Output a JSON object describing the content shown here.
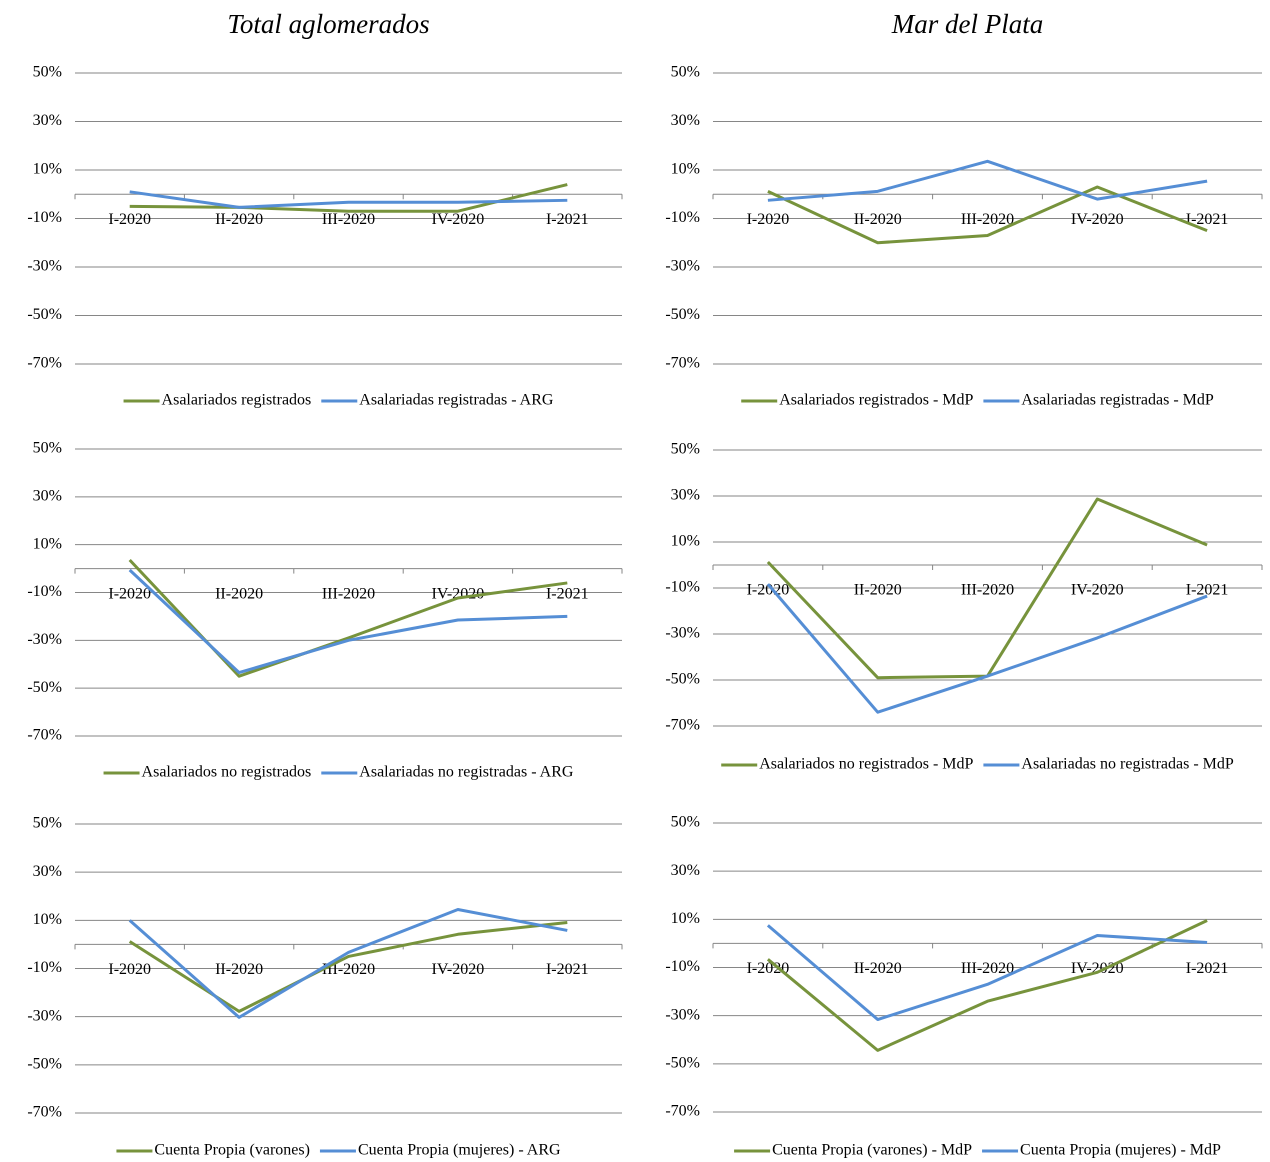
{
  "chart_data": [
    {
      "type": "line",
      "title": "Total aglomerados",
      "categories": [
        "I-2020",
        "II-2020",
        "III-2020",
        "IV-2020",
        "I-2021"
      ],
      "series": [
        {
          "name": "Asalariados registrados",
          "color": "#77933c",
          "values": [
            -5,
            -5.4,
            -7,
            -7,
            4
          ]
        },
        {
          "name": "Asalariadas registradas - ARG",
          "color": "#558ed5",
          "values": [
            1,
            -5.4,
            -3.3,
            -3.3,
            -2.5
          ]
        }
      ],
      "ylim": [
        -70,
        50
      ],
      "yticks": [
        {
          "value": 50,
          "label": "50%"
        },
        {
          "value": 30,
          "label": "30%"
        },
        {
          "value": 10,
          "label": "10%"
        },
        {
          "value": -10,
          "label": "-10%"
        },
        {
          "value": -30,
          "label": "-30%"
        },
        {
          "value": -50,
          "label": "-50%"
        },
        {
          "value": -70,
          "label": "-70%"
        }
      ],
      "grid": true,
      "legend": "bottom"
    },
    {
      "type": "line",
      "title": "Mar del Plata",
      "categories": [
        "I-2020",
        "II-2020",
        "III-2020",
        "IV-2020",
        "I-2021"
      ],
      "series": [
        {
          "name": "Asalariados registrados - MdP",
          "color": "#77933c",
          "values": [
            1.2,
            -20,
            -17,
            3,
            -15
          ]
        },
        {
          "name": "Asalariadas registradas - MdP",
          "color": "#558ed5",
          "values": [
            -2.5,
            1.2,
            13.6,
            -2,
            5.4
          ]
        }
      ],
      "ylim": [
        -70,
        50
      ],
      "yticks": [
        {
          "value": 50,
          "label": "50%"
        },
        {
          "value": 30,
          "label": "30%"
        },
        {
          "value": 10,
          "label": "10%"
        },
        {
          "value": -10,
          "label": "-10%"
        },
        {
          "value": -30,
          "label": "-30%"
        },
        {
          "value": -50,
          "label": "-50%"
        },
        {
          "value": -70,
          "label": "-70%"
        }
      ],
      "grid": true,
      "legend": "bottom"
    },
    {
      "type": "line",
      "categories": [
        "I-2020",
        "II-2020",
        "III-2020",
        "IV-2020",
        "I-2021"
      ],
      "series": [
        {
          "name": "Asalariados no registrados",
          "color": "#77933c",
          "values": [
            3.6,
            -45,
            -29,
            -12.3,
            -6
          ]
        },
        {
          "name": "Asalariadas no registradas - ARG",
          "color": "#558ed5",
          "values": [
            -0.6,
            -43.5,
            -30,
            -21.5,
            -20
          ]
        }
      ],
      "ylim": [
        -70,
        50
      ],
      "yticks": [
        {
          "value": 50,
          "label": "50%"
        },
        {
          "value": 30,
          "label": "30%"
        },
        {
          "value": 10,
          "label": "10%"
        },
        {
          "value": -10,
          "label": "-10%"
        },
        {
          "value": -30,
          "label": "-30%"
        },
        {
          "value": -50,
          "label": "-50%"
        },
        {
          "value": -70,
          "label": "-70%"
        }
      ],
      "grid": true,
      "legend": "bottom"
    },
    {
      "type": "line",
      "categories": [
        "I-2020",
        "II-2020",
        "III-2020",
        "IV-2020",
        "I-2021"
      ],
      "series": [
        {
          "name": "Asalariados no registrados - MdP",
          "color": "#77933c",
          "values": [
            1.3,
            -49,
            -48.3,
            28.7,
            8.7
          ]
        },
        {
          "name": "Asalariadas no registradas - MdP",
          "color": "#558ed5",
          "values": [
            -8.3,
            -64,
            -48.3,
            -31.7,
            -13.5
          ]
        }
      ],
      "ylim": [
        -70,
        50
      ],
      "yticks": [
        {
          "value": 50,
          "label": "50%"
        },
        {
          "value": 30,
          "label": "30%"
        },
        {
          "value": 10,
          "label": "10%"
        },
        {
          "value": -10,
          "label": "-10%"
        },
        {
          "value": -30,
          "label": "-30%"
        },
        {
          "value": -50,
          "label": "-50%"
        },
        {
          "value": -70,
          "label": "-70%"
        }
      ],
      "grid": true,
      "legend": "bottom"
    },
    {
      "type": "line",
      "categories": [
        "I-2020",
        "II-2020",
        "III-2020",
        "IV-2020",
        "I-2021"
      ],
      "series": [
        {
          "name": "Cuenta Propia (varones)",
          "color": "#77933c",
          "values": [
            1.2,
            -27.8,
            -5,
            4.2,
            9.1
          ]
        },
        {
          "name": "Cuenta Propia (mujeres) - ARG",
          "color": "#558ed5",
          "values": [
            10,
            -30.3,
            -3.3,
            14.5,
            5.8
          ]
        }
      ],
      "ylim": [
        -70,
        50
      ],
      "yticks": [
        {
          "value": 50,
          "label": "50%"
        },
        {
          "value": 30,
          "label": "30%"
        },
        {
          "value": 10,
          "label": "10%"
        },
        {
          "value": -10,
          "label": "-10%"
        },
        {
          "value": -30,
          "label": "-30%"
        },
        {
          "value": -50,
          "label": "-50%"
        },
        {
          "value": -70,
          "label": "-70%"
        }
      ],
      "grid": true,
      "legend": "bottom"
    },
    {
      "type": "line",
      "categories": [
        "I-2020",
        "II-2020",
        "III-2020",
        "IV-2020",
        "I-2021"
      ],
      "series": [
        {
          "name": "Cuenta Propia (varones) - MdP",
          "color": "#77933c",
          "values": [
            -6.6,
            -44.4,
            -24,
            -12,
            9.5
          ]
        },
        {
          "name": "Cuenta Propia (mujeres) - MdP",
          "color": "#558ed5",
          "values": [
            7.5,
            -31.6,
            -17,
            3.3,
            0.4
          ]
        }
      ],
      "ylim": [
        -70,
        50
      ],
      "yticks": [
        {
          "value": 50,
          "label": "50%"
        },
        {
          "value": 30,
          "label": "30%"
        },
        {
          "value": 10,
          "label": "10%"
        },
        {
          "value": -10,
          "label": "-10%"
        },
        {
          "value": -30,
          "label": "-30%"
        },
        {
          "value": -50,
          "label": "-50%"
        },
        {
          "value": -70,
          "label": "-70%"
        }
      ],
      "grid": true,
      "legend": "bottom"
    }
  ]
}
